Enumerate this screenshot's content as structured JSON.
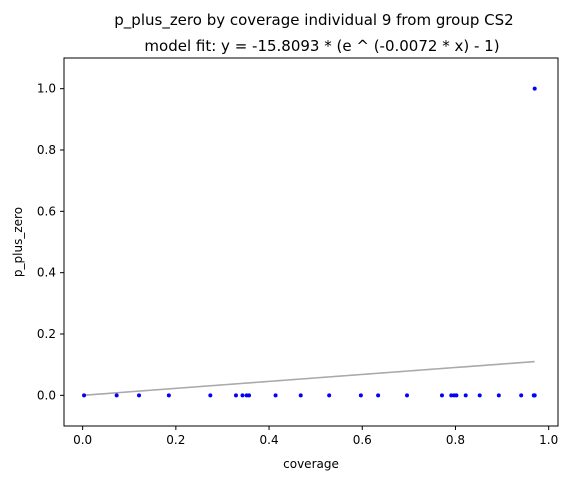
{
  "chart_data": {
    "type": "scatter",
    "title": "p_plus_zero by coverage individual 9 from group CS2",
    "subtitle": "model fit: y = -15.8093 * (e ^ (-0.0072 * x) - 1)",
    "xlabel": "coverage",
    "ylabel": "p_plus_zero",
    "xlim": [
      -0.04,
      1.02
    ],
    "ylim": [
      -0.1,
      1.1
    ],
    "xticks": [
      0.0,
      0.2,
      0.4,
      0.6,
      0.8,
      1.0
    ],
    "xtick_labels": [
      "0.0",
      "0.2",
      "0.4",
      "0.6",
      "0.8",
      "1.0"
    ],
    "yticks": [
      0.0,
      0.2,
      0.4,
      0.6,
      0.8,
      1.0
    ],
    "ytick_labels": [
      "0.0",
      "0.2",
      "0.4",
      "0.6",
      "0.8",
      "1.0"
    ],
    "grid": false,
    "series": [
      {
        "kind": "scatter",
        "color": "#0000ff",
        "points": [
          [
            0.003,
            0.0
          ],
          [
            0.073,
            0.0
          ],
          [
            0.121,
            0.0
          ],
          [
            0.185,
            0.0
          ],
          [
            0.274,
            0.0
          ],
          [
            0.329,
            0.0
          ],
          [
            0.343,
            0.0
          ],
          [
            0.352,
            0.0
          ],
          [
            0.357,
            0.0
          ],
          [
            0.414,
            0.0
          ],
          [
            0.468,
            0.0
          ],
          [
            0.529,
            0.0
          ],
          [
            0.597,
            0.0
          ],
          [
            0.634,
            0.0
          ],
          [
            0.696,
            0.0
          ],
          [
            0.771,
            0.0
          ],
          [
            0.791,
            0.0
          ],
          [
            0.797,
            0.0
          ],
          [
            0.802,
            0.0
          ],
          [
            0.822,
            0.0
          ],
          [
            0.852,
            0.0
          ],
          [
            0.893,
            0.0
          ],
          [
            0.941,
            0.0
          ],
          [
            0.968,
            0.0
          ],
          [
            0.969,
            0.0
          ],
          [
            0.97,
            0.0
          ],
          [
            0.97,
            1.0
          ]
        ]
      },
      {
        "kind": "line",
        "color": "#aaaaaa",
        "model": {
          "a": -15.8093,
          "b": -0.0072
        },
        "x_range": [
          0.0,
          0.97
        ]
      }
    ]
  }
}
